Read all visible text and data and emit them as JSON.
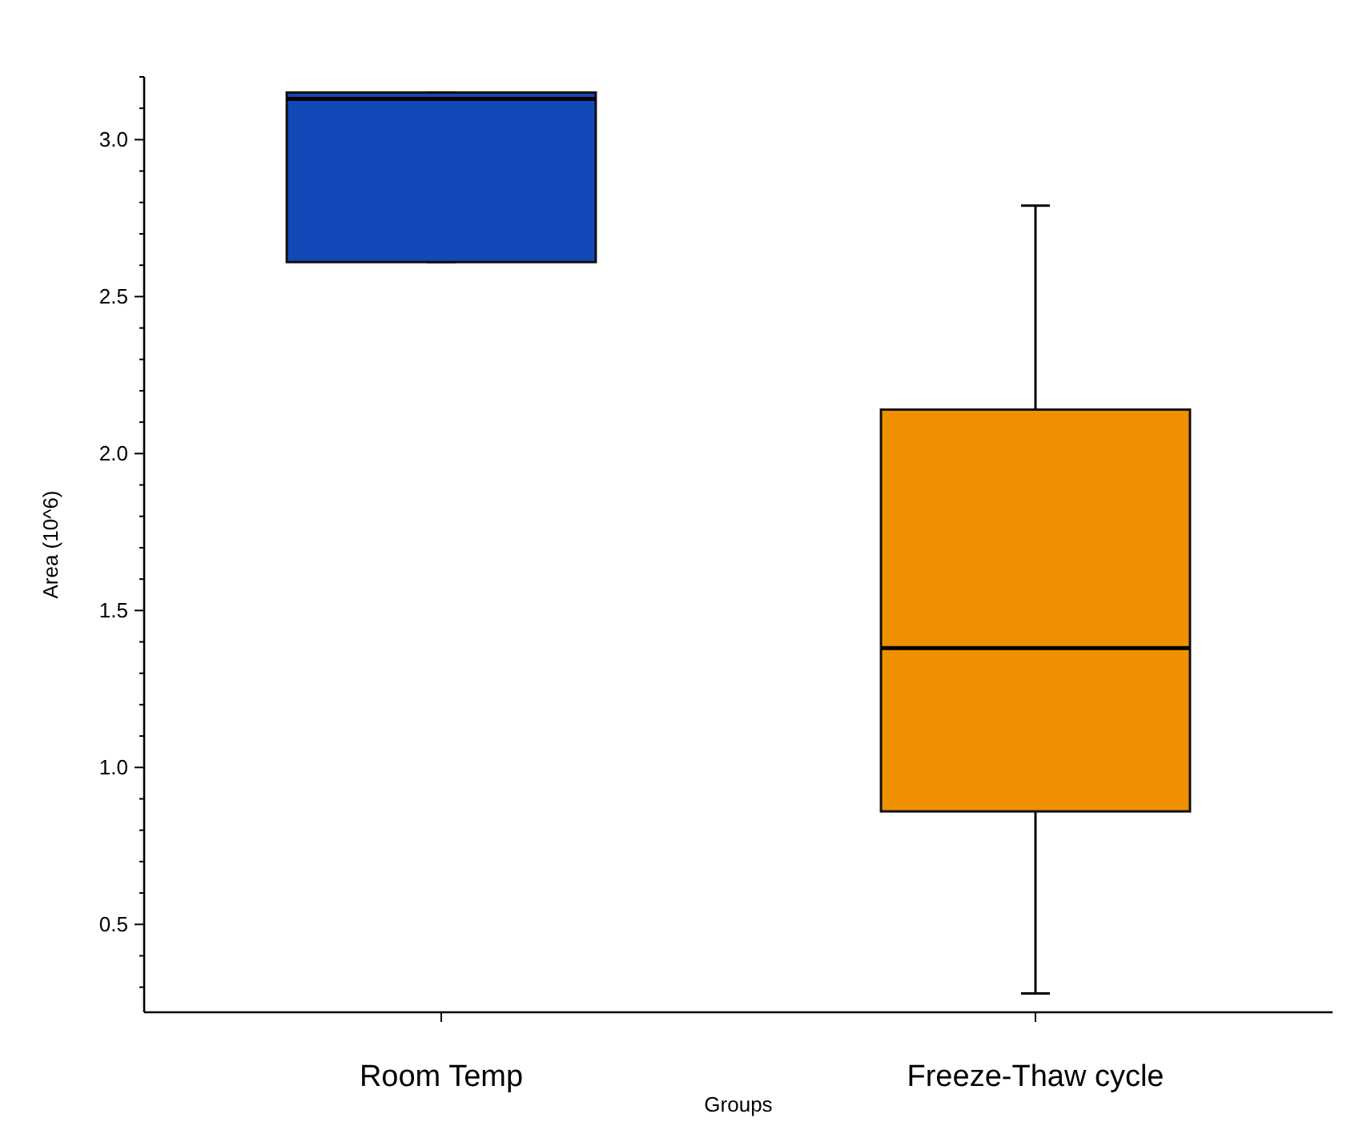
{
  "chart_data": {
    "type": "box",
    "xlabel": "Groups",
    "ylabel": "Area (10^6)",
    "categories": [
      "Room Temp",
      "Freeze-Thaw cycle"
    ],
    "colors": [
      "#1249b8",
      "#f09000"
    ],
    "boxes": [
      {
        "low": 2.61,
        "q1": 2.61,
        "median": 3.13,
        "q3": 3.15,
        "high": 3.15
      },
      {
        "low": 0.28,
        "q1": 0.86,
        "median": 1.38,
        "q3": 2.14,
        "high": 2.79
      }
    ],
    "ylim": [
      0.22,
      3.2
    ],
    "yticks": [
      {
        "value": 0.3,
        "label": null
      },
      {
        "value": 0.4,
        "label": null
      },
      0.5,
      {
        "value": 0.6,
        "label": null
      },
      {
        "value": 0.7,
        "label": null
      },
      {
        "value": 0.8,
        "label": null
      },
      {
        "value": 0.9,
        "label": null
      },
      {
        "value": 1.0,
        "label": "1.0"
      },
      {
        "value": 1.1,
        "label": null
      },
      {
        "value": 1.2,
        "label": null
      },
      {
        "value": 1.3,
        "label": null
      },
      {
        "value": 1.4,
        "label": null
      },
      1.5,
      {
        "value": 1.6,
        "label": null
      },
      {
        "value": 1.7,
        "label": null
      },
      {
        "value": 1.8,
        "label": null
      },
      {
        "value": 1.9,
        "label": null
      },
      {
        "value": 2.0,
        "label": "2.0"
      },
      {
        "value": 2.1,
        "label": null
      },
      {
        "value": 2.2,
        "label": null
      },
      {
        "value": 2.3,
        "label": null
      },
      {
        "value": 2.4,
        "label": null
      },
      2.5,
      {
        "value": 2.6,
        "label": null
      },
      {
        "value": 2.7,
        "label": null
      },
      {
        "value": 2.8,
        "label": null
      },
      {
        "value": 2.9,
        "label": null
      },
      {
        "value": 3.0,
        "label": "3.0"
      },
      {
        "value": 3.1,
        "label": null
      },
      {
        "value": 3.2,
        "label": null
      }
    ],
    "grid": false
  }
}
